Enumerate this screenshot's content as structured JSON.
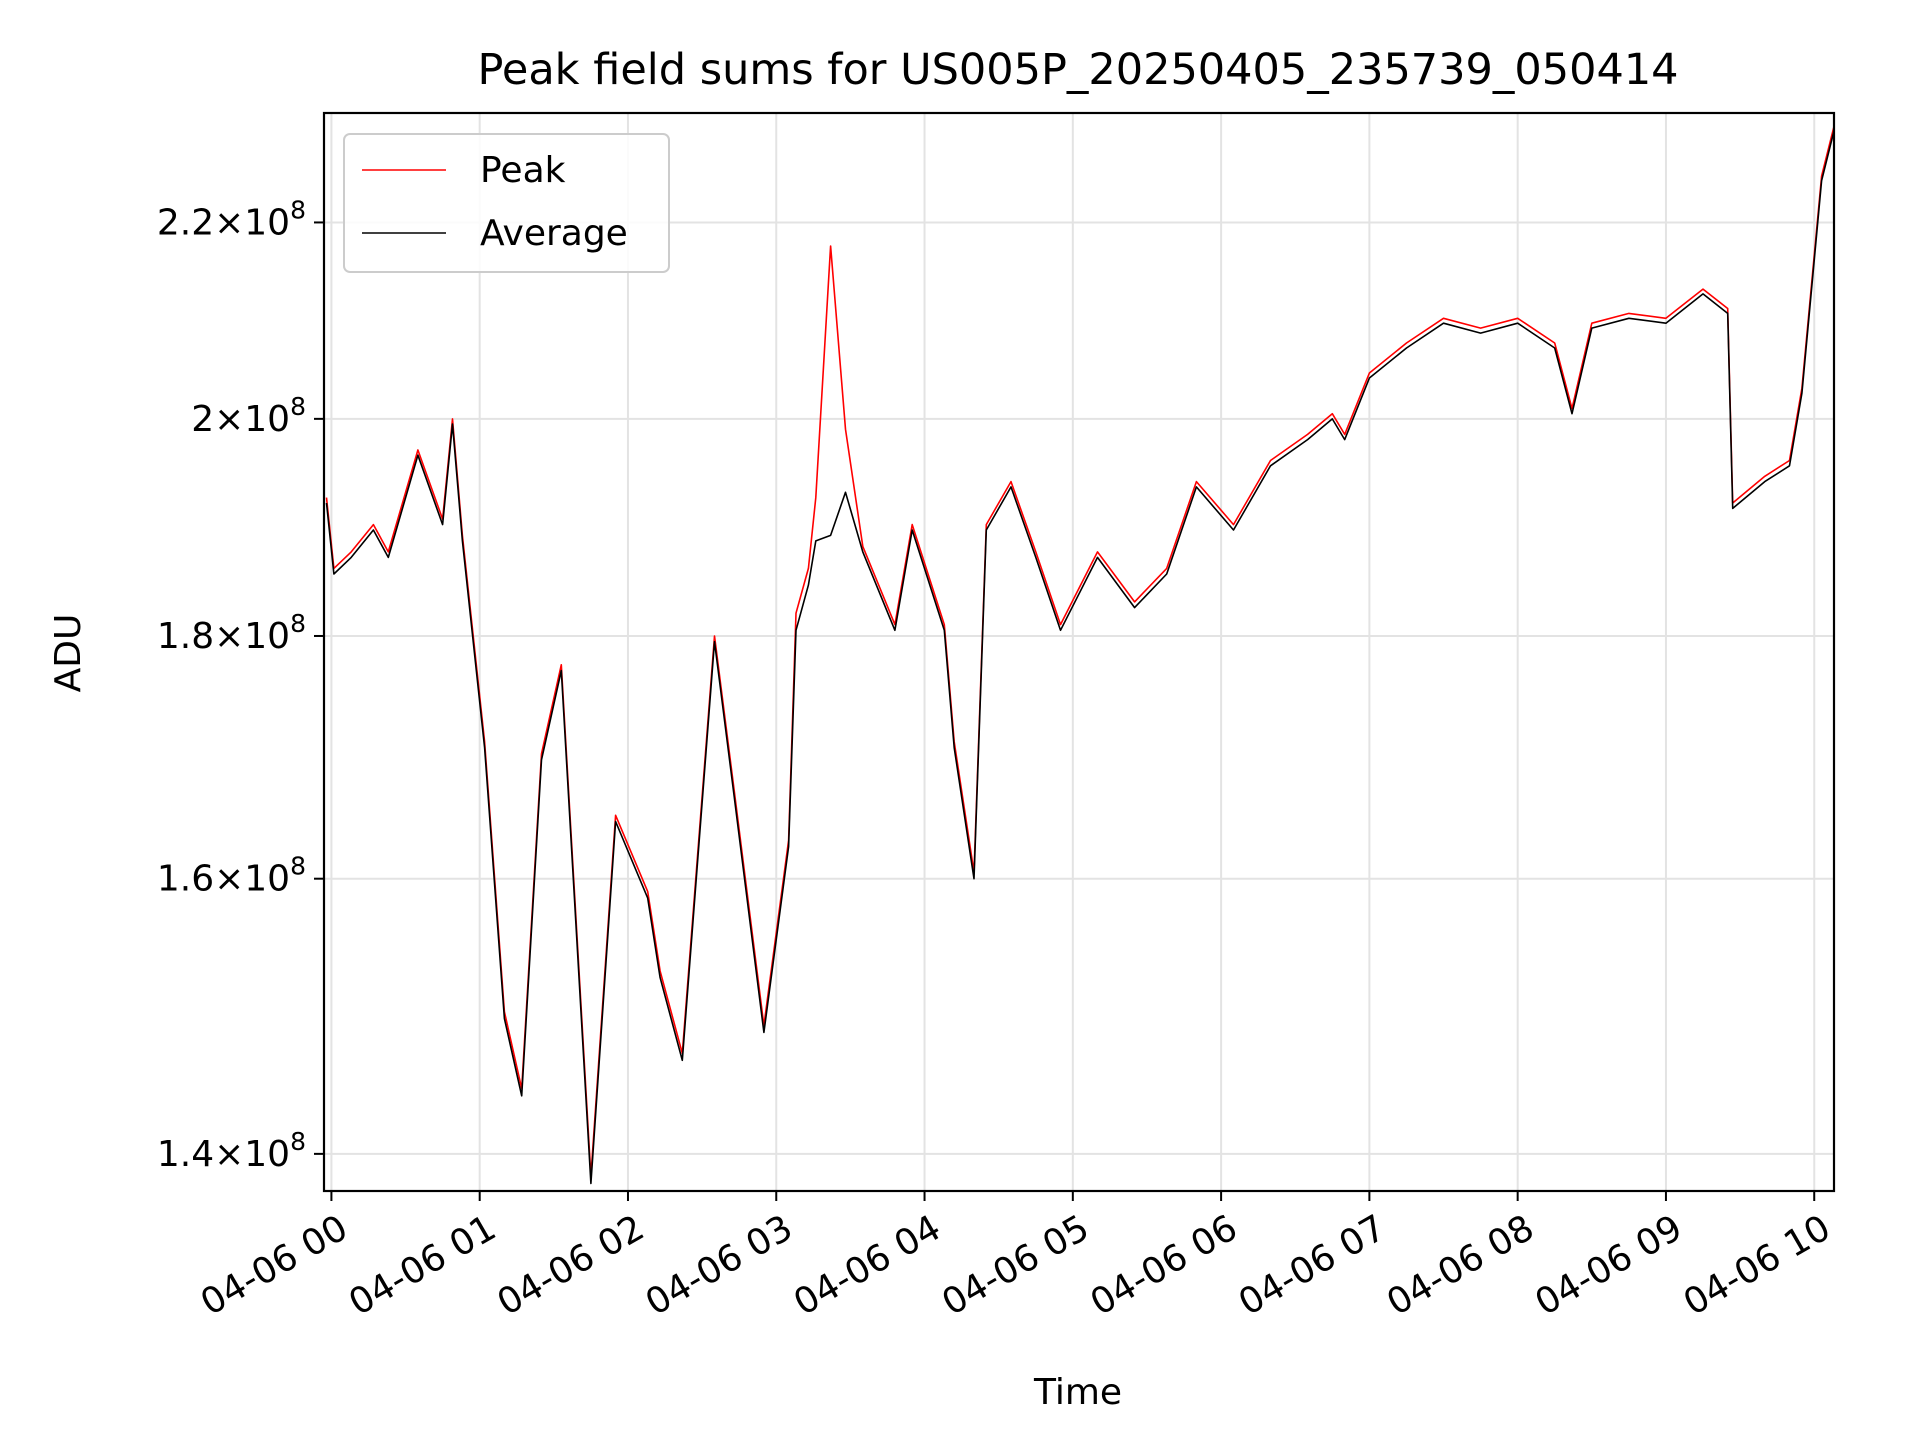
{
  "chart_data": {
    "type": "line",
    "title": "Peak field sums for US005P_20250405_235739_050414",
    "xlabel": "Time",
    "ylabel": "ADU",
    "y_scale": "log",
    "grid": true,
    "legend_position": "upper-left",
    "xlim": [
      "2025-04-05 23:57",
      "2025-04-06 10:08"
    ],
    "ylim": [
      137500000,
      232000000
    ],
    "x_ticks": [
      {
        "time": "2025-04-06 00:00",
        "label": "04-06 00"
      },
      {
        "time": "2025-04-06 01:00",
        "label": "04-06 01"
      },
      {
        "time": "2025-04-06 02:00",
        "label": "04-06 02"
      },
      {
        "time": "2025-04-06 03:00",
        "label": "04-06 03"
      },
      {
        "time": "2025-04-06 04:00",
        "label": "04-06 04"
      },
      {
        "time": "2025-04-06 05:00",
        "label": "04-06 05"
      },
      {
        "time": "2025-04-06 06:00",
        "label": "04-06 06"
      },
      {
        "time": "2025-04-06 07:00",
        "label": "04-06 07"
      },
      {
        "time": "2025-04-06 08:00",
        "label": "04-06 08"
      },
      {
        "time": "2025-04-06 09:00",
        "label": "04-06 09"
      },
      {
        "time": "2025-04-06 10:00",
        "label": "04-06 10"
      }
    ],
    "y_ticks": [
      {
        "value": 140000000,
        "mantissa": "1.4",
        "base": "10",
        "exp": "8"
      },
      {
        "value": 160000000,
        "mantissa": "1.6",
        "base": "10",
        "exp": "8"
      },
      {
        "value": 180000000,
        "mantissa": "1.8",
        "base": "10",
        "exp": "8"
      },
      {
        "value": 200000000,
        "mantissa": "2",
        "base": "10",
        "exp": "8"
      },
      {
        "value": 220000000,
        "mantissa": "2.2",
        "base": "10",
        "exp": "8"
      }
    ],
    "series": [
      {
        "name": "Peak",
        "color": "#ff0000",
        "x": [
          "2025-04-05 23:58",
          "2025-04-06 00:01",
          "2025-04-06 00:08",
          "2025-04-06 00:17",
          "2025-04-06 00:23",
          "2025-04-06 00:35",
          "2025-04-06 00:45",
          "2025-04-06 00:49",
          "2025-04-06 00:53",
          "2025-04-06 01:02",
          "2025-04-06 01:10",
          "2025-04-06 01:17",
          "2025-04-06 01:25",
          "2025-04-06 01:33",
          "2025-04-06 01:45",
          "2025-04-06 01:55",
          "2025-04-06 02:08",
          "2025-04-06 02:13",
          "2025-04-06 02:22",
          "2025-04-06 02:35",
          "2025-04-06 02:43",
          "2025-04-06 02:55",
          "2025-04-06 03:05",
          "2025-04-06 03:08",
          "2025-04-06 03:13",
          "2025-04-06 03:16",
          "2025-04-06 03:22",
          "2025-04-06 03:28",
          "2025-04-06 03:35",
          "2025-04-06 03:48",
          "2025-04-06 03:55",
          "2025-04-06 04:08",
          "2025-04-06 04:12",
          "2025-04-06 04:20",
          "2025-04-06 04:25",
          "2025-04-06 04:35",
          "2025-04-06 04:45",
          "2025-04-06 04:55",
          "2025-04-06 05:10",
          "2025-04-06 05:25",
          "2025-04-06 05:38",
          "2025-04-06 05:50",
          "2025-04-06 06:05",
          "2025-04-06 06:20",
          "2025-04-06 06:35",
          "2025-04-06 06:45",
          "2025-04-06 06:50",
          "2025-04-06 07:00",
          "2025-04-06 07:15",
          "2025-04-06 07:30",
          "2025-04-06 07:45",
          "2025-04-06 08:00",
          "2025-04-06 08:15",
          "2025-04-06 08:22",
          "2025-04-06 08:30",
          "2025-04-06 08:45",
          "2025-04-06 09:00",
          "2025-04-06 09:15",
          "2025-04-06 09:25",
          "2025-04-06 09:27",
          "2025-04-06 09:40",
          "2025-04-06 09:50",
          "2025-04-06 09:55",
          "2025-04-06 10:03",
          "2025-04-06 10:08"
        ],
        "values": [
          192500000,
          186000000,
          187500000,
          190000000,
          187500000,
          197000000,
          190500000,
          200000000,
          189000000,
          171000000,
          150000000,
          144500000,
          170000000,
          177500000,
          138500000,
          165000000,
          159000000,
          153000000,
          147000000,
          180000000,
          167000000,
          149000000,
          163000000,
          182000000,
          186000000,
          192500000,
          217500000,
          199000000,
          188000000,
          181000000,
          190000000,
          181000000,
          171000000,
          160500000,
          190000000,
          194000000,
          187500000,
          181000000,
          187500000,
          183000000,
          186000000,
          194000000,
          190000000,
          196000000,
          198500000,
          200500000,
          198500000,
          204500000,
          207500000,
          210000000,
          209000000,
          210000000,
          207500000,
          201000000,
          209500000,
          210500000,
          210000000,
          213000000,
          211000000,
          192000000,
          194500000,
          196000000,
          203000000,
          225000000,
          230500000
        ]
      },
      {
        "name": "Average",
        "color": "#000000",
        "x": [
          "2025-04-05 23:58",
          "2025-04-06 00:01",
          "2025-04-06 00:08",
          "2025-04-06 00:17",
          "2025-04-06 00:23",
          "2025-04-06 00:35",
          "2025-04-06 00:45",
          "2025-04-06 00:49",
          "2025-04-06 00:53",
          "2025-04-06 01:02",
          "2025-04-06 01:10",
          "2025-04-06 01:17",
          "2025-04-06 01:25",
          "2025-04-06 01:33",
          "2025-04-06 01:45",
          "2025-04-06 01:55",
          "2025-04-06 02:08",
          "2025-04-06 02:13",
          "2025-04-06 02:22",
          "2025-04-06 02:35",
          "2025-04-06 02:43",
          "2025-04-06 02:55",
          "2025-04-06 03:05",
          "2025-04-06 03:08",
          "2025-04-06 03:13",
          "2025-04-06 03:16",
          "2025-04-06 03:22",
          "2025-04-06 03:28",
          "2025-04-06 03:35",
          "2025-04-06 03:48",
          "2025-04-06 03:55",
          "2025-04-06 04:08",
          "2025-04-06 04:12",
          "2025-04-06 04:20",
          "2025-04-06 04:25",
          "2025-04-06 04:35",
          "2025-04-06 04:45",
          "2025-04-06 04:55",
          "2025-04-06 05:10",
          "2025-04-06 05:25",
          "2025-04-06 05:38",
          "2025-04-06 05:50",
          "2025-04-06 06:05",
          "2025-04-06 06:20",
          "2025-04-06 06:35",
          "2025-04-06 06:45",
          "2025-04-06 06:50",
          "2025-04-06 07:00",
          "2025-04-06 07:15",
          "2025-04-06 07:30",
          "2025-04-06 07:45",
          "2025-04-06 08:00",
          "2025-04-06 08:15",
          "2025-04-06 08:22",
          "2025-04-06 08:30",
          "2025-04-06 08:45",
          "2025-04-06 09:00",
          "2025-04-06 09:15",
          "2025-04-06 09:25",
          "2025-04-06 09:27",
          "2025-04-06 09:40",
          "2025-04-06 09:50",
          "2025-04-06 09:55",
          "2025-04-06 10:03",
          "2025-04-06 10:08"
        ],
        "values": [
          192000000,
          185500000,
          187000000,
          189500000,
          187000000,
          196500000,
          190000000,
          199500000,
          188500000,
          170500000,
          149500000,
          144000000,
          169500000,
          177000000,
          138000000,
          164500000,
          158500000,
          152500000,
          146500000,
          179500000,
          166500000,
          148500000,
          162500000,
          180500000,
          184500000,
          188500000,
          189000000,
          193000000,
          187500000,
          180500000,
          189500000,
          180500000,
          170500000,
          160000000,
          189500000,
          193500000,
          187000000,
          180500000,
          187000000,
          182500000,
          185500000,
          193500000,
          189500000,
          195500000,
          198000000,
          200000000,
          198000000,
          204000000,
          207000000,
          209500000,
          208500000,
          209500000,
          207000000,
          200500000,
          209000000,
          210000000,
          209500000,
          212500000,
          210500000,
          191500000,
          194000000,
          195500000,
          202500000,
          224500000,
          230000000
        ]
      }
    ]
  }
}
